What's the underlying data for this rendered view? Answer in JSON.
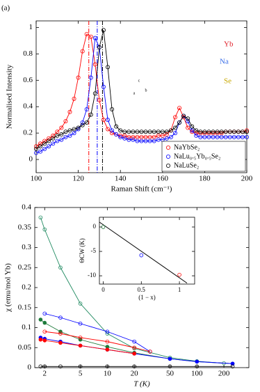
{
  "chart_data": [
    {
      "type": "line",
      "panel_label": "(a)",
      "xlabel": "Raman Shift (cm⁻¹)",
      "ylabel": "Normalised Intensity",
      "xlim": [
        100,
        200
      ],
      "ylim": [
        -0.1,
        1.05
      ],
      "xticks": [
        100,
        120,
        140,
        160,
        180,
        200
      ],
      "yticks": [
        0,
        0.2,
        0.4,
        0.6,
        0.8,
        1
      ],
      "x": [
        100,
        102,
        104,
        106,
        108,
        110,
        112,
        114,
        116,
        118,
        120,
        122,
        124,
        126,
        128,
        130,
        132,
        134,
        136,
        138,
        140,
        142,
        144,
        146,
        148,
        150,
        152,
        154,
        156,
        158,
        160,
        162,
        164,
        166,
        168,
        170,
        172,
        174,
        176,
        178,
        180,
        182,
        184,
        186,
        188,
        190,
        192,
        194,
        196,
        198,
        200
      ],
      "series": [
        {
          "name": "NaYbSe₂",
          "color": "#ff0000",
          "marker": "open",
          "values": [
            0.1,
            0.12,
            0.14,
            0.16,
            0.18,
            0.21,
            0.24,
            0.29,
            0.36,
            0.46,
            0.62,
            0.82,
            0.95,
            0.93,
            0.72,
            0.45,
            0.3,
            0.23,
            0.2,
            0.19,
            0.18,
            0.18,
            0.17,
            0.17,
            0.17,
            0.17,
            0.17,
            0.17,
            0.17,
            0.18,
            0.18,
            0.19,
            0.22,
            0.32,
            0.39,
            0.32,
            0.24,
            0.21,
            0.2,
            0.2,
            0.2,
            0.2,
            0.2,
            0.2,
            0.2,
            0.21,
            0.21,
            0.21,
            0.21,
            0.21,
            0.22
          ]
        },
        {
          "name": "NaLu₀.₅Yb₀.₅Se₂",
          "color": "#0000ff",
          "marker": "open",
          "values": [
            0.05,
            0.06,
            0.08,
            0.1,
            0.12,
            0.14,
            0.15,
            0.17,
            0.18,
            0.2,
            0.23,
            0.28,
            0.38,
            0.62,
            0.92,
            0.85,
            0.55,
            0.3,
            0.22,
            0.19,
            0.17,
            0.16,
            0.15,
            0.15,
            0.14,
            0.14,
            0.14,
            0.14,
            0.14,
            0.15,
            0.15,
            0.16,
            0.17,
            0.2,
            0.28,
            0.33,
            0.29,
            0.22,
            0.18,
            0.17,
            0.17,
            0.17,
            0.17,
            0.17,
            0.17,
            0.17,
            0.17,
            0.17,
            0.17,
            0.17,
            0.17
          ]
        },
        {
          "name": "NaLuSe₂",
          "color": "#000000",
          "marker": "open",
          "values": [
            0.08,
            0.1,
            0.12,
            0.14,
            0.16,
            0.18,
            0.19,
            0.21,
            0.22,
            0.23,
            0.24,
            0.26,
            0.28,
            0.34,
            0.5,
            0.85,
            0.98,
            0.7,
            0.38,
            0.25,
            0.22,
            0.21,
            0.21,
            0.21,
            0.21,
            0.21,
            0.21,
            0.21,
            0.21,
            0.21,
            0.21,
            0.21,
            0.22,
            0.24,
            0.28,
            0.33,
            0.31,
            0.25,
            0.22,
            0.21,
            0.21,
            0.21,
            0.21,
            0.21,
            0.21,
            0.21,
            0.21,
            0.21,
            0.21,
            0.21,
            0.21
          ]
        }
      ],
      "vlines": [
        {
          "x": 125,
          "color": "#ff0000"
        },
        {
          "x": 129,
          "color": "#0000ff"
        },
        {
          "x": 131.5,
          "color": "#000000"
        }
      ],
      "legend": "lower right",
      "structure_labels": [
        {
          "text": "Yb",
          "color": "#e0202a"
        },
        {
          "text": "Na",
          "color": "#3a6ee8"
        },
        {
          "text": "Se",
          "color": "#c8a800"
        }
      ],
      "axes_triad": [
        "c",
        "a",
        "b"
      ]
    },
    {
      "type": "scatter",
      "xlabel": "T (K)",
      "ylabel": "χ (emu/mol Yb)",
      "xscale": "log",
      "xlim": [
        1.55,
        380
      ],
      "ylim": [
        0,
        0.4
      ],
      "xticks": [
        2,
        5,
        10,
        20,
        50,
        100,
        200
      ],
      "yticks": [
        0,
        0.05,
        0.1,
        0.15,
        0.2,
        0.25,
        0.3,
        0.35,
        0.4
      ],
      "series": [
        {
          "color": "#1f8a60",
          "marker": "open",
          "x": [
            1.8,
            2,
            3,
            5,
            10,
            20,
            50,
            100,
            200
          ],
          "values": [
            0.375,
            0.345,
            0.25,
            0.16,
            0.085,
            0.048,
            0.025,
            0.016,
            0.011
          ]
        },
        {
          "color": "#1d7a3a",
          "marker": "filled",
          "x": [
            1.8,
            2,
            3,
            5,
            10,
            20,
            50,
            100,
            250
          ],
          "values": [
            0.12,
            0.112,
            0.09,
            0.07,
            0.052,
            0.037,
            0.022,
            0.015,
            0.01
          ]
        },
        {
          "color": "#0000ff",
          "marker": "open",
          "x": [
            2,
            3,
            5,
            10,
            20,
            30
          ],
          "values": [
            0.135,
            0.125,
            0.11,
            0.09,
            0.065,
            0.04
          ]
        },
        {
          "color": "#0000ff",
          "marker": "filled",
          "x": [
            1.8,
            2,
            3,
            5,
            10,
            20,
            50,
            100,
            250
          ],
          "values": [
            0.075,
            0.072,
            0.065,
            0.055,
            0.045,
            0.035,
            0.022,
            0.015,
            0.01
          ]
        },
        {
          "color": "#ff0000",
          "marker": "open",
          "x": [
            2,
            3,
            5,
            10,
            20,
            30
          ],
          "values": [
            0.09,
            0.085,
            0.075,
            0.065,
            0.05,
            0.04
          ]
        },
        {
          "color": "#ff0000",
          "marker": "filled",
          "x": [
            1.8,
            2,
            3,
            5,
            10,
            20
          ],
          "values": [
            0.07,
            0.068,
            0.062,
            0.055,
            0.045,
            0.035
          ]
        },
        {
          "color": "#000000",
          "marker": "open",
          "x": [
            1.8,
            2,
            3,
            5,
            10,
            20,
            50,
            100,
            250
          ],
          "values": [
            0.003,
            0.003,
            0.003,
            0.003,
            0.003,
            0.003,
            0.003,
            0.003,
            0.003
          ]
        }
      ]
    },
    {
      "type": "scatter",
      "xlabel": "(1 − x)",
      "ylabel": "ΘCW (K)",
      "xlim": [
        -0.05,
        1.2
      ],
      "ylim": [
        -11.7,
        2
      ],
      "xticks": [
        0,
        0.5,
        1
      ],
      "yticks": [
        -10,
        -5,
        0
      ],
      "series": [
        {
          "color": "#1d7a3a",
          "marker": "open",
          "x": [
            0
          ],
          "values": [
            0
          ]
        },
        {
          "color": "#0000ff",
          "marker": "open",
          "x": [
            0.5
          ],
          "values": [
            -5.8
          ]
        },
        {
          "color": "#ff0000",
          "marker": "open",
          "x": [
            1
          ],
          "values": [
            -9.8
          ]
        }
      ],
      "fit": {
        "x": [
          -0.05,
          1.1
        ],
        "y": [
          1.0,
          -11.5
        ]
      }
    }
  ]
}
